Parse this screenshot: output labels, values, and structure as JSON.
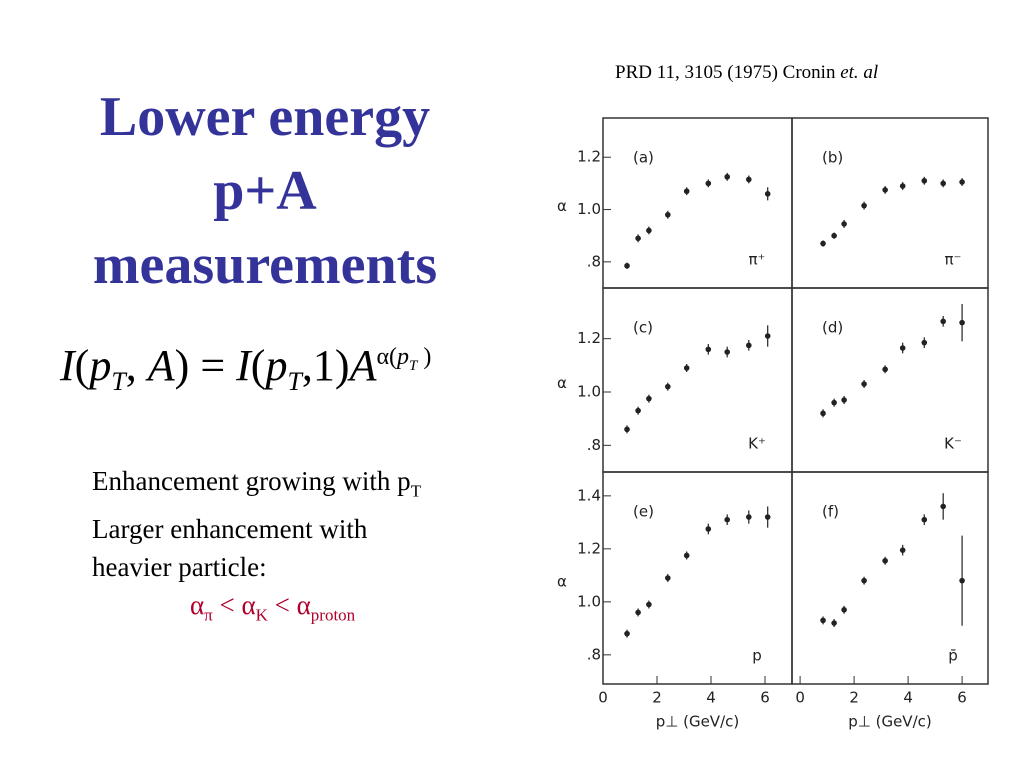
{
  "title": [
    "Lower energy",
    "p+A",
    "measurements"
  ],
  "citation": {
    "text": "PRD 11, 3105 (1975) Cronin ",
    "italic": "et. al"
  },
  "formula": [
    "I",
    "(",
    "p",
    "T",
    ", ",
    "A",
    ") = ",
    "I",
    "(",
    "p",
    "T",
    ",1)",
    "A",
    "α(",
    "p",
    "T",
    " )"
  ],
  "bullets": {
    "line1": "Enhancement growing with p",
    "line1_sub": "T",
    "line2": "Larger enhancement with",
    "line3": "heavier particle:",
    "relation": [
      "α",
      "π",
      " < α",
      "K",
      " < α",
      "proton"
    ]
  },
  "chart_data": [
    {
      "type": "scatter",
      "title": "(a)",
      "annotation": "π⁺",
      "color": "#222",
      "ylabel": "α",
      "x": [
        0.89,
        1.3,
        1.7,
        2.4,
        3.1,
        3.9,
        4.6,
        5.4,
        6.1
      ],
      "values": [
        0.785,
        0.89,
        0.92,
        0.98,
        1.07,
        1.1,
        1.125,
        1.115,
        1.06
      ],
      "errors": [
        0.012,
        0.015,
        0.015,
        0.015,
        0.015,
        0.015,
        0.015,
        0.015,
        0.025
      ],
      "xlim": [
        0,
        7.0
      ],
      "ylim": [
        0.7,
        1.35
      ],
      "yticks": [
        {
          "value": 0.8,
          "label": ".8"
        },
        {
          "value": 1.0,
          "label": "1.0"
        },
        {
          "value": 1.2,
          "label": "1.2"
        }
      ]
    },
    {
      "type": "scatter",
      "title": "(b)",
      "annotation": "π⁻",
      "color": "#222",
      "x": [
        0.85,
        1.26,
        1.63,
        2.37,
        3.15,
        3.8,
        4.6,
        5.3,
        6.0
      ],
      "values": [
        0.87,
        0.9,
        0.945,
        1.015,
        1.075,
        1.09,
        1.11,
        1.1,
        1.105
      ],
      "errors": [
        0.012,
        0.012,
        0.015,
        0.015,
        0.015,
        0.015,
        0.015,
        0.015,
        0.015
      ],
      "xlim": [
        -0.3,
        6.96
      ],
      "ylim": [
        0.7,
        1.35
      ]
    },
    {
      "type": "scatter",
      "title": "(c)",
      "annotation": "K⁺",
      "color": "#222",
      "ylabel": "α",
      "x": [
        0.89,
        1.3,
        1.7,
        2.4,
        3.1,
        3.9,
        4.6,
        5.4,
        6.1
      ],
      "values": [
        0.86,
        0.93,
        0.975,
        1.02,
        1.09,
        1.16,
        1.15,
        1.175,
        1.21
      ],
      "errors": [
        0.015,
        0.015,
        0.015,
        0.015,
        0.015,
        0.02,
        0.02,
        0.02,
        0.04
      ],
      "xlim": [
        0,
        7.0
      ],
      "ylim": [
        0.7,
        1.39
      ],
      "yticks": [
        {
          "value": 0.8,
          "label": ".8"
        },
        {
          "value": 1.0,
          "label": "1.0"
        },
        {
          "value": 1.2,
          "label": "1.2"
        }
      ]
    },
    {
      "type": "scatter",
      "title": "(d)",
      "annotation": "K⁻",
      "color": "#222",
      "x": [
        0.85,
        1.26,
        1.63,
        2.37,
        3.15,
        3.8,
        4.6,
        5.3,
        6.0
      ],
      "values": [
        0.92,
        0.96,
        0.97,
        1.03,
        1.085,
        1.165,
        1.185,
        1.265,
        1.26
      ],
      "errors": [
        0.015,
        0.015,
        0.015,
        0.015,
        0.015,
        0.02,
        0.02,
        0.02,
        0.07
      ],
      "xlim": [
        -0.3,
        6.96
      ],
      "ylim": [
        0.7,
        1.39
      ]
    },
    {
      "type": "scatter",
      "title": "(e)",
      "annotation": "p",
      "color": "#222",
      "ylabel": "α",
      "xlabel": "p⊥ (GeV/c)",
      "x": [
        0.89,
        1.3,
        1.7,
        2.4,
        3.1,
        3.9,
        4.6,
        5.4,
        6.1
      ],
      "values": [
        0.88,
        0.96,
        0.99,
        1.09,
        1.175,
        1.275,
        1.31,
        1.32,
        1.32
      ],
      "errors": [
        0.015,
        0.015,
        0.015,
        0.015,
        0.015,
        0.02,
        0.02,
        0.025,
        0.04
      ],
      "xlim": [
        0,
        7.0
      ],
      "ylim": [
        0.69,
        1.49
      ],
      "xticks": [
        0,
        2,
        4,
        6
      ],
      "yticks": [
        {
          "value": 0.8,
          "label": ".8"
        },
        {
          "value": 1.0,
          "label": "1.0"
        },
        {
          "value": 1.2,
          "label": "1.2"
        },
        {
          "value": 1.4,
          "label": "1.4"
        }
      ]
    },
    {
      "type": "scatter",
      "title": "(f)",
      "annotation": "p̄",
      "color": "#222",
      "xlabel": "p⊥ (GeV/c)",
      "x": [
        0.85,
        1.26,
        1.63,
        2.37,
        3.15,
        3.8,
        4.6,
        5.3,
        6.0
      ],
      "values": [
        0.93,
        0.92,
        0.97,
        1.08,
        1.155,
        1.195,
        1.31,
        1.36,
        1.08
      ],
      "errors": [
        0.015,
        0.015,
        0.015,
        0.015,
        0.015,
        0.02,
        0.02,
        0.05,
        0.17
      ],
      "xlim": [
        -0.3,
        6.96
      ],
      "ylim": [
        0.69,
        1.49
      ],
      "xticks": [
        0,
        2,
        4,
        6
      ]
    }
  ]
}
